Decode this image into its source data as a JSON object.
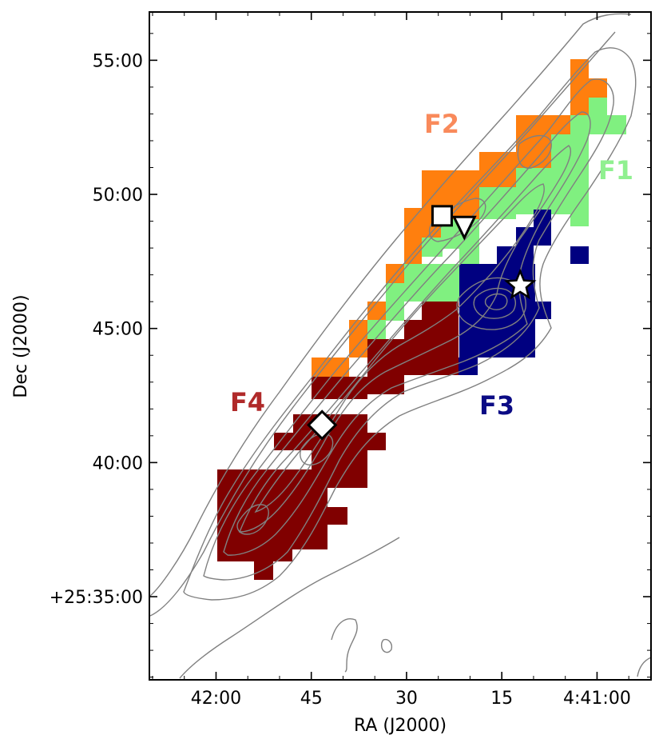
{
  "chart_data": {
    "type": "map",
    "xlabel": "RA (J2000)",
    "ylabel": "Dec (J2000)",
    "x_ticks": [
      {
        "label": "42:00",
        "ra_offset_s": 60
      },
      {
        "label": "45",
        "ra_offset_s": 45
      },
      {
        "label": "30",
        "ra_offset_s": 30
      },
      {
        "label": "15",
        "ra_offset_s": 15
      },
      {
        "label": "4:41:00",
        "ra_offset_s": 0
      }
    ],
    "y_ticks": [
      {
        "label": "55:00",
        "dec_arcmin": 55
      },
      {
        "label": "50:00",
        "dec_arcmin": 50
      },
      {
        "label": "45:00",
        "dec_arcmin": 45
      },
      {
        "label": "40:00",
        "dec_arcmin": 40
      },
      {
        "label": "+25:35:00",
        "dec_arcmin": 35
      }
    ],
    "xlim_ra_offset_s": [
      70.5,
      -8.5
    ],
    "ylim_dec_arcmin": [
      31.9,
      56.8
    ],
    "regions": [
      {
        "name": "F1",
        "color": "#90f090"
      },
      {
        "name": "F2",
        "color": "#f98a5b"
      },
      {
        "name": "F3",
        "color": "#0b0b85"
      },
      {
        "name": "F4",
        "color": "#b02a2a"
      }
    ],
    "region_fill_colors": {
      "F1": "#80f080",
      "F2": "#ff7f0e",
      "F3": "#000080",
      "F4": "#800000"
    },
    "contour_color": "#808080",
    "markers": [
      {
        "shape": "square",
        "ra_offset_s": 24.4,
        "dec_arcmin": 49.2
      },
      {
        "shape": "triangle-down",
        "ra_offset_s": 20.9,
        "dec_arcmin": 48.8
      },
      {
        "shape": "star",
        "ra_offset_s": 12.1,
        "dec_arcmin": 46.6
      },
      {
        "shape": "diamond",
        "ra_offset_s": 43.3,
        "dec_arcmin": 41.4
      }
    ]
  }
}
